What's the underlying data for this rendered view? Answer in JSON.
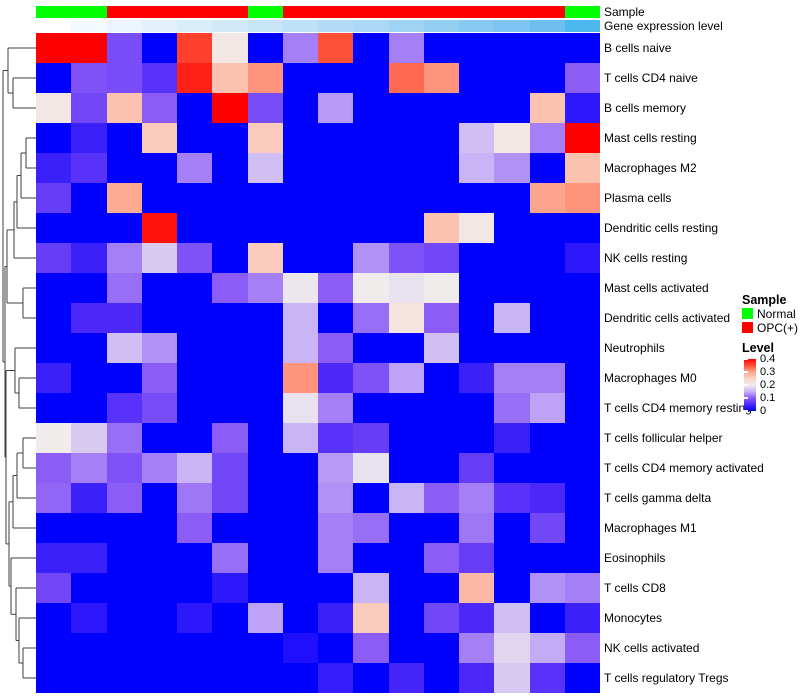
{
  "annotations": {
    "sample_label": "Sample",
    "gene_label": "Gene expression level"
  },
  "chart_data": {
    "type": "heatmap",
    "n_columns": 16,
    "sample_groups": [
      "Normal",
      "Normal",
      "OPC(+)",
      "OPC(+)",
      "OPC(+)",
      "OPC(+)",
      "Normal",
      "OPC(+)",
      "OPC(+)",
      "OPC(+)",
      "OPC(+)",
      "OPC(+)",
      "OPC(+)",
      "OPC(+)",
      "OPC(+)",
      "Normal"
    ],
    "sample_group_colors": {
      "Normal": "#00FF00",
      "OPC(+)": "#FF0000"
    },
    "gene_expression_colors": [
      "#FFFFFF",
      "#F5FAFE",
      "#ECF5FD",
      "#E3F1FC",
      "#DAEDFA",
      "#D1E9F9",
      "#C8E5F8",
      "#BEE1F7",
      "#B4DCF6",
      "#AAD8F5",
      "#9FD3F4",
      "#94CEF3",
      "#88C9F2",
      "#7CC4F1",
      "#6FBEF0",
      "#4DB8EE"
    ],
    "value_range": [
      0,
      0.4
    ],
    "color_scale_stops": [
      [
        0.0,
        "#0000FF"
      ],
      [
        0.05,
        "#4B28F8"
      ],
      [
        0.1,
        "#8B5CF6"
      ],
      [
        0.15,
        "#C9B4F6"
      ],
      [
        0.2,
        "#F0ECEC"
      ],
      [
        0.25,
        "#FAD5C8"
      ],
      [
        0.3,
        "#FCA58C"
      ],
      [
        0.35,
        "#FF5038"
      ],
      [
        0.4,
        "#FF0000"
      ]
    ],
    "rows": [
      {
        "label": "B cells naive",
        "values": [
          0.4,
          0.4,
          0.085,
          0,
          0.36,
          0.21,
          0,
          0.12,
          0.35,
          0,
          0.12,
          0,
          0,
          0,
          0,
          0
        ]
      },
      {
        "label": "T cells CD4 naive",
        "values": [
          0,
          0.09,
          0.085,
          0.06,
          0.38,
          0.27,
          0.31,
          0,
          0,
          0,
          0.335,
          0.31,
          0,
          0,
          0,
          0.1
        ]
      },
      {
        "label": "B cells memory",
        "values": [
          0.21,
          0.08,
          0.27,
          0.1,
          0,
          0.4,
          0.085,
          0,
          0.135,
          0,
          0,
          0,
          0,
          0,
          0.27,
          0.03
        ]
      },
      {
        "label": "Mast cells resting",
        "values": [
          0,
          0.04,
          0,
          0.26,
          0,
          0,
          0.26,
          0,
          0,
          0,
          0,
          0,
          0.16,
          0.21,
          0.12,
          0.4
        ]
      },
      {
        "label": "Macrophages M2",
        "values": [
          0.04,
          0.06,
          0,
          0,
          0.12,
          0,
          0.16,
          0,
          0,
          0,
          0,
          0,
          0.15,
          0.13,
          0,
          0.27
        ]
      },
      {
        "label": "Plasma cells",
        "values": [
          0.07,
          0,
          0.295,
          0,
          0,
          0,
          0,
          0,
          0,
          0,
          0,
          0,
          0,
          0,
          0.3,
          0.31
        ]
      },
      {
        "label": "Dendritic cells resting",
        "values": [
          0,
          0,
          0,
          0.39,
          0,
          0,
          0,
          0,
          0,
          0,
          0,
          0.27,
          0.21,
          0,
          0,
          0
        ]
      },
      {
        "label": "NK cells resting",
        "values": [
          0.07,
          0.04,
          0.12,
          0.17,
          0.09,
          0,
          0.26,
          0,
          0,
          0.13,
          0.09,
          0.08,
          0,
          0,
          0,
          0.03
        ]
      },
      {
        "label": "Mast cells activated",
        "values": [
          0,
          0,
          0.11,
          0,
          0,
          0.1,
          0.12,
          0.195,
          0.1,
          0.2,
          0.19,
          0.2,
          0,
          0,
          0,
          0
        ]
      },
      {
        "label": "Dendritic cells activated",
        "values": [
          0,
          0.05,
          0.05,
          0,
          0,
          0,
          0,
          0.15,
          0,
          0.11,
          0.22,
          0.1,
          0,
          0.15,
          0,
          0
        ]
      },
      {
        "label": "Neutrophils",
        "values": [
          0,
          0,
          0.16,
          0.13,
          0,
          0,
          0,
          0.15,
          0.1,
          0,
          0,
          0.16,
          0,
          0,
          0,
          0
        ]
      },
      {
        "label": "Macrophages M0",
        "values": [
          0.04,
          0,
          0,
          0.1,
          0,
          0,
          0,
          0.31,
          0.05,
          0.09,
          0.14,
          0,
          0.04,
          0.12,
          0.12,
          0
        ]
      },
      {
        "label": "T cells CD4 memory resting",
        "values": [
          0,
          0,
          0.06,
          0.085,
          0,
          0,
          0,
          0.19,
          0.12,
          0,
          0,
          0,
          0,
          0.11,
          0.14,
          0
        ]
      },
      {
        "label": "T cells follicular helper",
        "values": [
          0.2,
          0.17,
          0.11,
          0,
          0,
          0.1,
          0,
          0.15,
          0.06,
          0.07,
          0,
          0,
          0,
          0.04,
          0,
          0
        ]
      },
      {
        "label": "T cells CD4 memory activated",
        "values": [
          0.1,
          0.12,
          0.09,
          0.12,
          0.15,
          0.08,
          0,
          0,
          0.135,
          0.19,
          0,
          0,
          0.07,
          0,
          0,
          0
        ]
      },
      {
        "label": "T cells gamma delta",
        "values": [
          0.105,
          0.04,
          0.1,
          0,
          0.115,
          0.08,
          0,
          0,
          0.13,
          0,
          0.15,
          0.1,
          0.12,
          0.06,
          0.05,
          0
        ]
      },
      {
        "label": "Macrophages M1",
        "values": [
          0,
          0,
          0,
          0,
          0.1,
          0,
          0,
          0,
          0.12,
          0.11,
          0,
          0,
          0.115,
          0,
          0.08,
          0
        ]
      },
      {
        "label": "Eosinophils",
        "values": [
          0.04,
          0.04,
          0,
          0,
          0,
          0.11,
          0,
          0,
          0.12,
          0,
          0,
          0.1,
          0.07,
          0,
          0,
          0
        ]
      },
      {
        "label": "T cells CD8",
        "values": [
          0.08,
          0,
          0,
          0,
          0,
          0.03,
          0,
          0,
          0,
          0.15,
          0,
          0,
          0.28,
          0,
          0.13,
          0.12
        ]
      },
      {
        "label": "Monocytes",
        "values": [
          0,
          0.03,
          0,
          0,
          0.03,
          0,
          0.14,
          0,
          0.04,
          0.26,
          0,
          0.08,
          0.05,
          0.16,
          0,
          0.04
        ]
      },
      {
        "label": "NK cells activated",
        "values": [
          0,
          0,
          0,
          0,
          0,
          0,
          0,
          0.02,
          0,
          0.1,
          0,
          0,
          0.12,
          0.18,
          0.145,
          0.1
        ]
      },
      {
        "label": "T cells regulatory Tregs",
        "values": [
          0,
          0,
          0,
          0,
          0,
          0,
          0,
          0,
          0.035,
          0,
          0.045,
          0,
          0.05,
          0.17,
          0.06,
          0
        ]
      }
    ],
    "legend": {
      "sample_title": "Sample",
      "sample_items": [
        {
          "label": "Normal",
          "color": "#00FF00"
        },
        {
          "label": "OPC(+)",
          "color": "#FF0000"
        }
      ],
      "level_title": "Level",
      "level_ticks": [
        "0.4",
        "0.3",
        "0.2",
        "0.1",
        "0"
      ]
    },
    "row_dendrogram_segments": [
      [
        8,
        48,
        36,
        48
      ],
      [
        13,
        78,
        36,
        78
      ],
      [
        13,
        108,
        36,
        108
      ],
      [
        26,
        138,
        36,
        138
      ],
      [
        26,
        168,
        36,
        168
      ],
      [
        21,
        198,
        36,
        198
      ],
      [
        17,
        228,
        36,
        228
      ],
      [
        14,
        258,
        36,
        258
      ],
      [
        23,
        288,
        36,
        288
      ],
      [
        23,
        318,
        36,
        318
      ],
      [
        15,
        348,
        36,
        348
      ],
      [
        19,
        378,
        36,
        378
      ],
      [
        19,
        408,
        36,
        408
      ],
      [
        23,
        438,
        36,
        438
      ],
      [
        23,
        468,
        36,
        468
      ],
      [
        17,
        498,
        36,
        498
      ],
      [
        13,
        528,
        36,
        528
      ],
      [
        11,
        558,
        36,
        558
      ],
      [
        16,
        588,
        36,
        588
      ],
      [
        19,
        618,
        36,
        618
      ],
      [
        23,
        648,
        36,
        648
      ],
      [
        23,
        678,
        36,
        678
      ],
      [
        13,
        78,
        13,
        108
      ],
      [
        8,
        48,
        8,
        93
      ],
      [
        3,
        70.5,
        3,
        361.9
      ],
      [
        26,
        138,
        26,
        168
      ],
      [
        21,
        153,
        21,
        198
      ],
      [
        17,
        175.5,
        17,
        228
      ],
      [
        14,
        201.8,
        14,
        258
      ],
      [
        23,
        288,
        23,
        318
      ],
      [
        7,
        229.9,
        7,
        303
      ],
      [
        5,
        266.5,
        5,
        457.2
      ],
      [
        19,
        378,
        19,
        408
      ],
      [
        15,
        348,
        15,
        393
      ],
      [
        23,
        438,
        23,
        468
      ],
      [
        17,
        453,
        17,
        498
      ],
      [
        13,
        475.5,
        13,
        528
      ],
      [
        23,
        648,
        23,
        678
      ],
      [
        19,
        618,
        19,
        663
      ],
      [
        16,
        588,
        16,
        640.5
      ],
      [
        11,
        558,
        11,
        614.3
      ],
      [
        9,
        501.8,
        9,
        586.1
      ],
      [
        6,
        370.5,
        6,
        543.9
      ],
      [
        8,
        93,
        13,
        93
      ],
      [
        3,
        70.5,
        8,
        70.5
      ],
      [
        3,
        361.9,
        5,
        361.9
      ],
      [
        5,
        266.5,
        7,
        266.5
      ],
      [
        5,
        457.2,
        6,
        457.2
      ],
      [
        7,
        229.9,
        14,
        229.9
      ],
      [
        7,
        303,
        23,
        303
      ],
      [
        21,
        153,
        26,
        153
      ],
      [
        17,
        175.5,
        21,
        175.5
      ],
      [
        14,
        201.8,
        17,
        201.8
      ],
      [
        6,
        370.5,
        15,
        370.5
      ],
      [
        15,
        393,
        19,
        393
      ],
      [
        6,
        543.9,
        9,
        543.9
      ],
      [
        9,
        501.8,
        13,
        501.8
      ],
      [
        13,
        475.5,
        17,
        475.5
      ],
      [
        17,
        453,
        23,
        453
      ],
      [
        9,
        586.1,
        11,
        586.1
      ],
      [
        11,
        614.3,
        16,
        614.3
      ],
      [
        16,
        640.5,
        19,
        640.5
      ],
      [
        19,
        663,
        23,
        663
      ]
    ]
  }
}
